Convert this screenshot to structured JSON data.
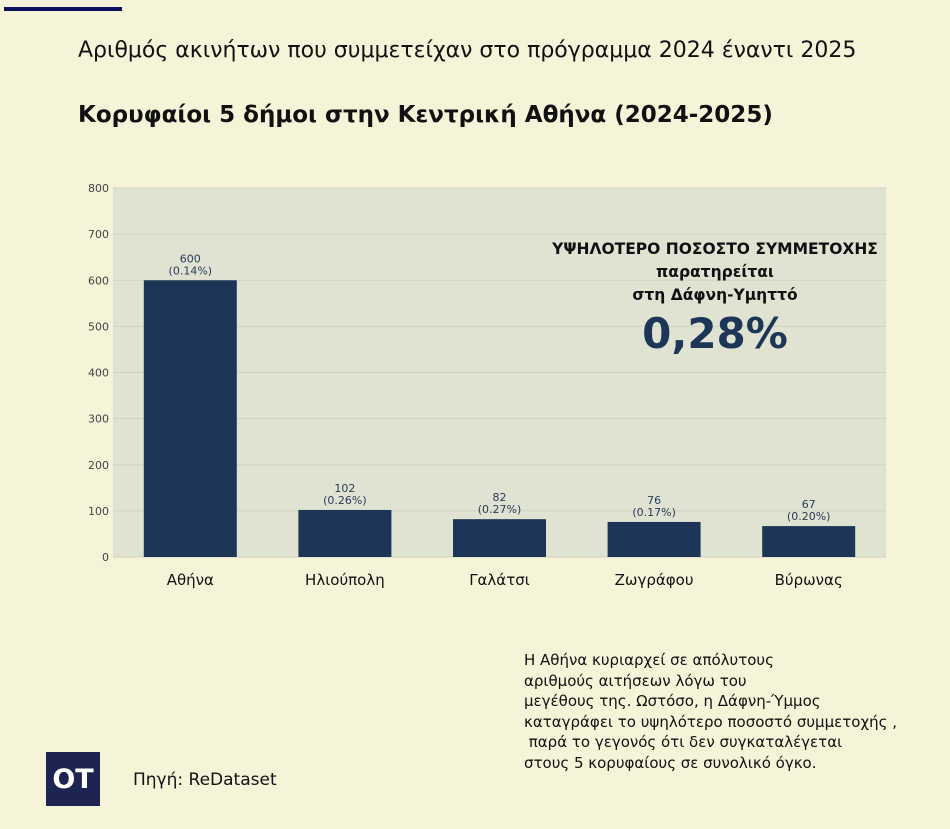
{
  "title": "Αριθμός ακινήτων που συμμετείχαν στο πρόγραμμα 2024 έναντι 2025",
  "subtitle": "Κορυφαίοι 5 δήμοι στην Κεντρική Αθήνα (2024-2025)",
  "annotation": {
    "line1": "ΥΨΗΛΟΤΕΡΟ ΠΟΣΟΣΤΟ ΣΥΜΜΕΤΟΧΗΣ",
    "line2": "παρατηρείται",
    "line3": "στη Δάφνη-Υμηττό",
    "value": "0,28%"
  },
  "note": "Η Αθήνα κυριαρχεί σε απόλυτους\nαριθμούς αιτήσεων λόγω του\nμεγέθους της. Ωστόσο, η Δάφνη-Ύμμος\nκαταγράφει το υψηλότερο ποσοστό συμμετοχής ,\n παρά το γεγονός ότι δεν συγκαταλέγεται\nστους 5 κορυφαίους σε συνολικό όγκο.",
  "logo": "ΟΤ",
  "source": "Πηγή: ReDataset",
  "colors": {
    "bar": "#1d3557",
    "plot_bg": "#e0e3d2",
    "page_bg": "#f5f3d8"
  },
  "chart_data": {
    "type": "bar",
    "categories": [
      "Αθήνα",
      "Ηλιούπολη",
      "Γαλάτσι",
      "Ζωγράφου",
      "Βύρωνας"
    ],
    "values": [
      600,
      102,
      82,
      76,
      67
    ],
    "labels": [
      "(0.14%)",
      "(0.26%)",
      "(0.27%)",
      "(0.17%)",
      "(0.20%)"
    ],
    "ylim": [
      0,
      800
    ],
    "yticks": [
      0,
      100,
      200,
      300,
      400,
      500,
      600,
      700,
      800
    ],
    "grid": true,
    "xlabel": "",
    "ylabel": ""
  }
}
